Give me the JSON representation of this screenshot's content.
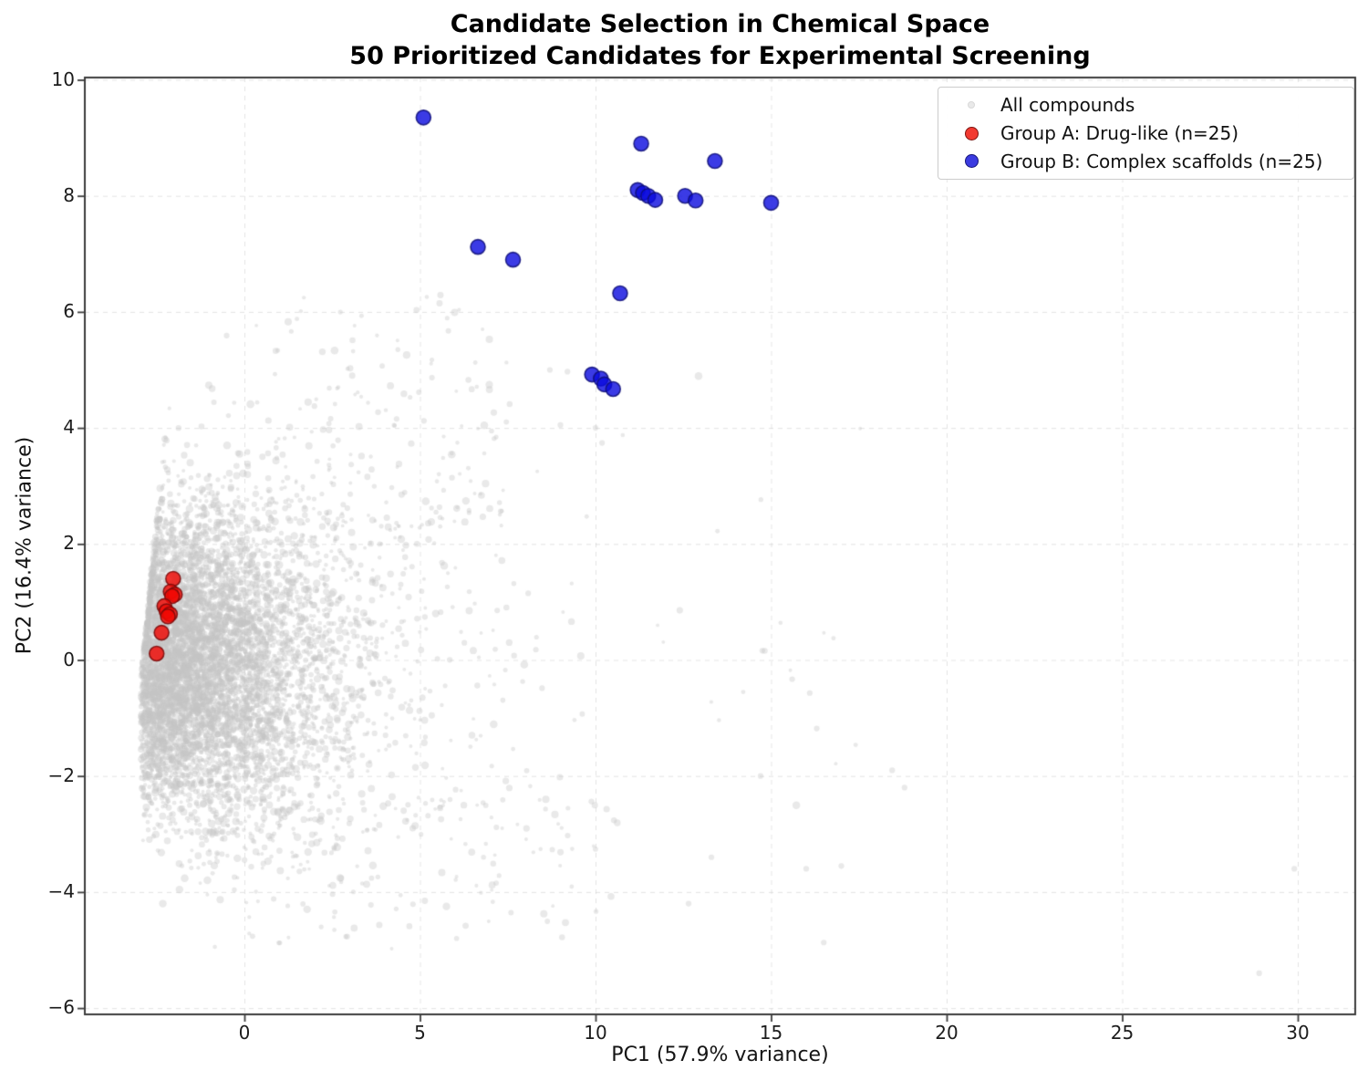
{
  "chart_data": {
    "type": "scatter",
    "title": "Candidate Selection in Chemical Space",
    "subtitle": "50 Prioritized Candidates for Experimental Screening",
    "xlabel": "PC1 (57.9% variance)",
    "ylabel": "PC2 (16.4% variance)",
    "xlim": [
      -4.5,
      31.6
    ],
    "ylim": [
      -6.1,
      10.0
    ],
    "xticks": [
      0,
      5,
      10,
      15,
      20,
      25,
      30
    ],
    "yticks": [
      -6,
      -4,
      -2,
      0,
      2,
      4,
      6,
      8,
      10
    ],
    "grid": {
      "visible": true,
      "style": "dashed",
      "color": "#c3c3c3",
      "alpha": 0.45
    },
    "background_color": "#ffffff",
    "spine_color": "#3c3c3c",
    "tick_label_color": "#1c1c1c",
    "legend": {
      "position": "upper right",
      "border_color": "#cccccc",
      "entries": [
        {
          "label": "All compounds",
          "marker_color": "#e9e9e9",
          "marker_edge": "#d9d9d9",
          "marker_size": 8
        },
        {
          "label": "Group A: Drug-like (n=25)",
          "marker_color": "#f23a31",
          "marker_edge": "#7d1410",
          "marker_size": 15
        },
        {
          "label": "Group B: Complex scaffolds (n=25)",
          "marker_color": "#3b3be0",
          "marker_edge": "#16167a",
          "marker_size": 15
        }
      ]
    },
    "series": [
      {
        "name": "All compounds",
        "role": "background-cloud",
        "color": "#c5c5c5",
        "alpha": 0.38,
        "approx_n": 7150,
        "generator": {
          "seed": 1337,
          "head": {
            "n": 5600,
            "x0": -2.95,
            "xscale": 2.5,
            "ycenter": -0.05,
            "ysigma": 1.15,
            "yspread": 0.1
          },
          "tail": {
            "n": 1300,
            "x0": -2.6,
            "xscale": 3.2,
            "ycenter": -0.2,
            "ysigma": 1.0,
            "yspread": 0.1,
            "xmax": 19.5
          },
          "upper": {
            "n": 150,
            "xmin": -1.5,
            "xspan": 9.0,
            "ybase": 2.3,
            "yspan": 4.0,
            "ypow": 1.9
          },
          "lower": {
            "n": 100,
            "xmin": 0.0,
            "xspan": 10.5,
            "ybase": -2.4,
            "yspan": 2.4,
            "ypow": 1.6
          }
        },
        "outliers": [
          [
            14.75,
            0.16
          ],
          [
            15.6,
            -0.33
          ],
          [
            16.1,
            -0.57
          ],
          [
            16.3,
            -1.18
          ],
          [
            14.7,
            -2.0
          ],
          [
            18.8,
            -2.2
          ],
          [
            13.3,
            -3.4
          ],
          [
            16.0,
            -3.6
          ],
          [
            17.0,
            -3.55
          ],
          [
            12.65,
            -4.2
          ],
          [
            16.5,
            -4.87
          ],
          [
            29.9,
            -3.6
          ],
          [
            28.9,
            -5.4
          ],
          [
            8.7,
            5.0
          ],
          [
            9.2,
            4.97
          ],
          [
            10.0,
            4.0
          ],
          [
            9.0,
            4.05
          ]
        ]
      },
      {
        "name": "Group A: Drug-like (n=25)",
        "n": 25,
        "fill": "#f00a05",
        "fill_alpha": 0.82,
        "edge": "#780a0a",
        "edge_alpha": 0.85,
        "marker_radius": 8,
        "note": "25 markers heavily overlapping near left edge of cloud; visible marker centers listed",
        "points": [
          [
            -2.03,
            1.4
          ],
          [
            -2.1,
            1.18
          ],
          [
            -1.98,
            1.13
          ],
          [
            -2.06,
            1.1
          ],
          [
            -2.28,
            0.93
          ],
          [
            -2.22,
            0.84
          ],
          [
            -2.12,
            0.79
          ],
          [
            -2.18,
            0.75
          ],
          [
            -2.36,
            0.47
          ],
          [
            -2.5,
            0.11
          ]
        ]
      },
      {
        "name": "Group B: Complex scaffolds (n=25)",
        "n": 25,
        "fill": "#0a0ade",
        "fill_alpha": 0.8,
        "edge": "#0f0f78",
        "edge_alpha": 0.85,
        "marker_radius": 8,
        "note": "25 markers, several overlapping; visible marker centers listed",
        "points": [
          [
            5.1,
            9.35
          ],
          [
            11.3,
            8.9
          ],
          [
            13.4,
            8.6
          ],
          [
            11.2,
            8.1
          ],
          [
            11.35,
            8.05
          ],
          [
            11.5,
            8.0
          ],
          [
            11.7,
            7.93
          ],
          [
            12.55,
            8.0
          ],
          [
            12.85,
            7.92
          ],
          [
            15.0,
            7.88
          ],
          [
            6.65,
            7.12
          ],
          [
            7.65,
            6.9
          ],
          [
            10.7,
            6.32
          ],
          [
            9.9,
            4.92
          ],
          [
            10.15,
            4.85
          ],
          [
            10.25,
            4.75
          ],
          [
            10.5,
            4.67
          ]
        ]
      }
    ]
  }
}
